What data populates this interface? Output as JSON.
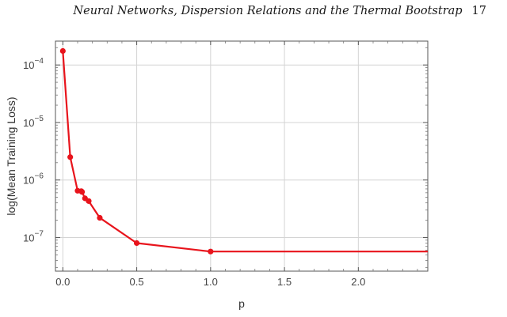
{
  "header": {
    "title": "Neural Networks, Dispersion Relations and the Thermal Bootstrap",
    "page_number": "17"
  },
  "chart_data": {
    "type": "line",
    "title": "",
    "xlabel": "p",
    "ylabel": "log(Mean Training Loss)",
    "xlim": [
      -0.05,
      2.47
    ],
    "ylim": [
      2.6e-08,
      0.00026
    ],
    "yscale": "log",
    "grid": true,
    "legend": "none",
    "x_ticks": [
      {
        "value": 0.0,
        "label": "0.0"
      },
      {
        "value": 0.5,
        "label": "0.5"
      },
      {
        "value": 1.0,
        "label": "1.0"
      },
      {
        "value": 1.5,
        "label": "1.5"
      },
      {
        "value": 2.0,
        "label": "2.0"
      }
    ],
    "y_ticks": [
      {
        "value": 1e-07,
        "base": "10",
        "exp": "−7"
      },
      {
        "value": 1e-06,
        "base": "10",
        "exp": "−6"
      },
      {
        "value": 1e-05,
        "base": "10",
        "exp": "−5"
      },
      {
        "value": 0.0001,
        "base": "10",
        "exp": "−4"
      }
    ],
    "series": [
      {
        "color": "#e8141c",
        "x": [
          0.0,
          0.05,
          0.1,
          0.125,
          0.13,
          0.15,
          0.175,
          0.25,
          0.5,
          1.0,
          2.47
        ],
        "y": [
          0.000175,
          2.5e-06,
          6.5e-07,
          6.4e-07,
          6.2e-07,
          4.8e-07,
          4.3e-07,
          2.2e-07,
          8e-08,
          5.7e-08,
          5.7e-08
        ],
        "markers": [
          true,
          true,
          true,
          true,
          true,
          true,
          true,
          true,
          true,
          true,
          false
        ]
      }
    ]
  }
}
